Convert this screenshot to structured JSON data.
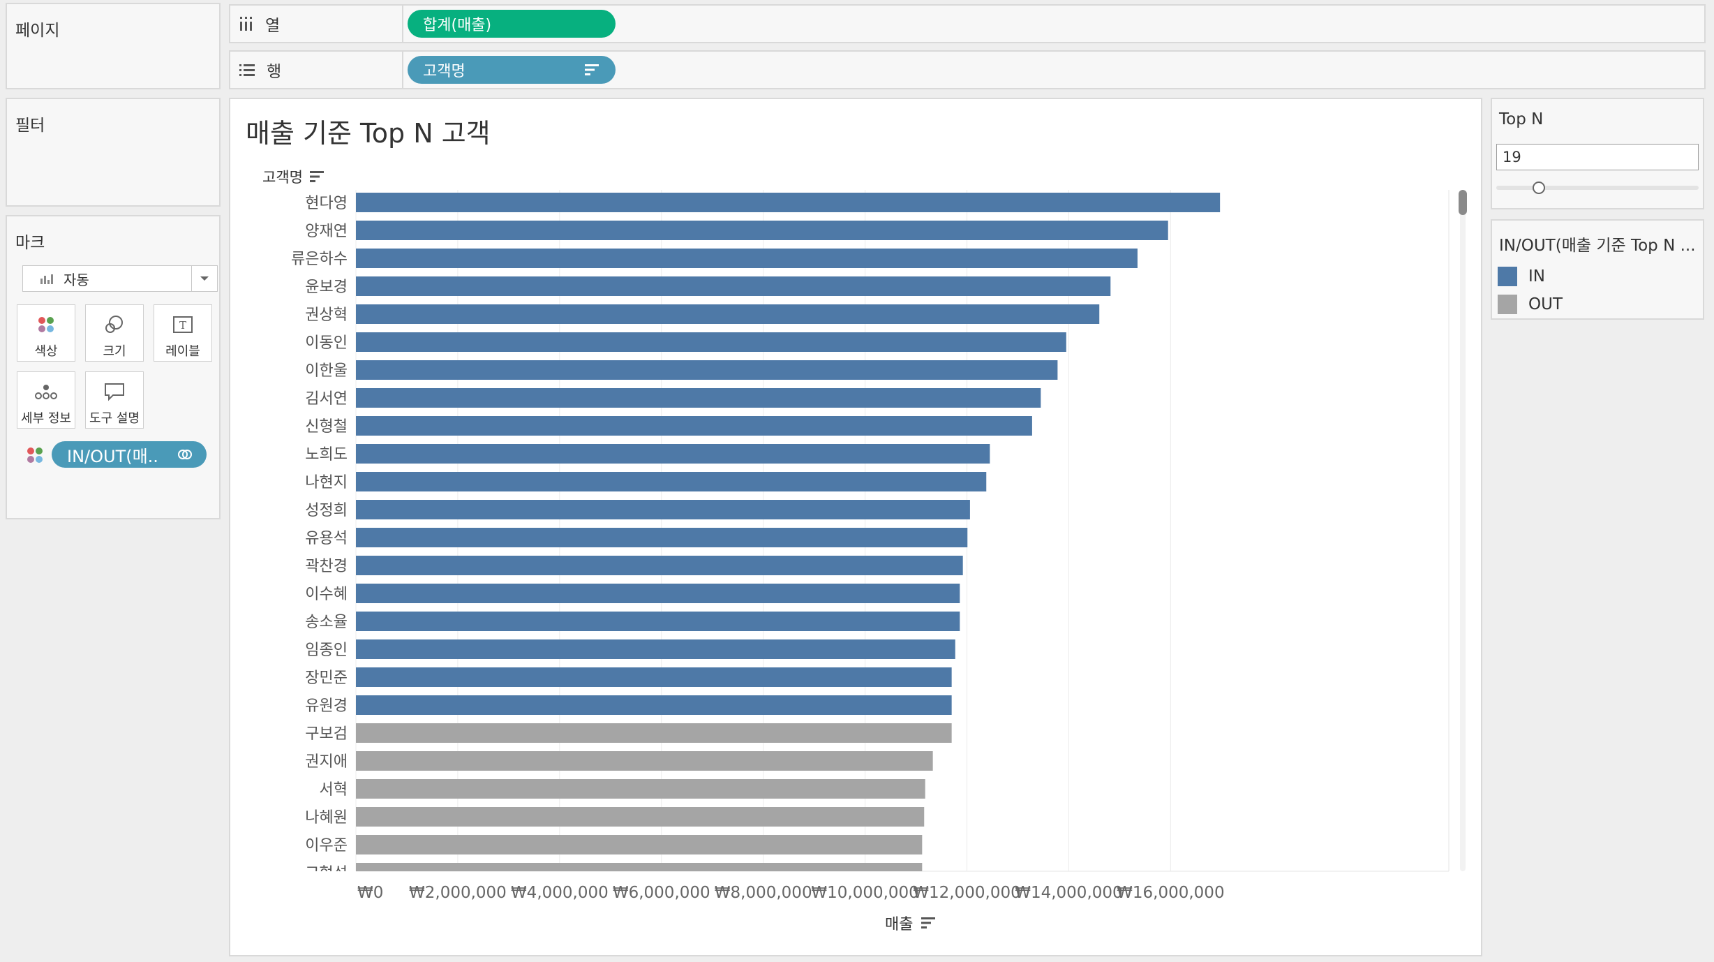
{
  "pages_panel": {
    "title": "페이지"
  },
  "filters_panel": {
    "title": "필터"
  },
  "marks_panel": {
    "title": "마크",
    "mark_type": "자동",
    "buttons": {
      "color": "색상",
      "size": "크기",
      "label": "레이블",
      "detail": "세부 정보",
      "tooltip": "도구 설명"
    },
    "color_pill": "IN/OUT(매.."
  },
  "columns_shelf": {
    "label": "열",
    "pill": "합계(매출)",
    "pill_color": "#07b07f"
  },
  "rows_shelf": {
    "label": "행",
    "pill": "고객명",
    "pill_color": "#4a9ab8"
  },
  "sheet": {
    "title": "매출 기준 Top N 고객",
    "row_header": "고객명",
    "x_axis_title": "매출"
  },
  "topn_panel": {
    "title": "Top N",
    "value": "19"
  },
  "legend_panel": {
    "title": "IN/OUT(매출 기준 Top N ...",
    "items": [
      {
        "label": "IN",
        "color": "#4e79a7"
      },
      {
        "label": "OUT",
        "color": "#a5a5a5"
      }
    ]
  },
  "chart_data": {
    "type": "bar",
    "orientation": "horizontal",
    "categories": [
      "현다영",
      "양재연",
      "류은하수",
      "윤보경",
      "권상혁",
      "이동인",
      "이한울",
      "김서연",
      "신형철",
      "노희도",
      "나현지",
      "성정희",
      "유용석",
      "곽찬경",
      "이수혜",
      "송소율",
      "임종인",
      "장민준",
      "유원경",
      "구보검",
      "권지애",
      "서혁",
      "나혜원",
      "이우준",
      "고혁석"
    ],
    "values": [
      16970000,
      15950000,
      15350000,
      14820000,
      14600000,
      13950000,
      13780000,
      13450000,
      13280000,
      12450000,
      12380000,
      12060000,
      12010000,
      11920000,
      11860000,
      11860000,
      11770000,
      11700000,
      11700000,
      11700000,
      11330000,
      11180000,
      11160000,
      11120000,
      11120000
    ],
    "group": [
      "IN",
      "IN",
      "IN",
      "IN",
      "IN",
      "IN",
      "IN",
      "IN",
      "IN",
      "IN",
      "IN",
      "IN",
      "IN",
      "IN",
      "IN",
      "IN",
      "IN",
      "IN",
      "IN",
      "OUT",
      "OUT",
      "OUT",
      "OUT",
      "OUT",
      "OUT"
    ],
    "xlim": [
      0,
      17900000
    ],
    "x_ticks": [
      0,
      2000000,
      4000000,
      6000000,
      8000000,
      10000000,
      12000000,
      14000000,
      16000000
    ],
    "x_tick_labels": [
      "₩0",
      "₩2,000,000",
      "₩4,000,000",
      "₩6,000,000",
      "₩8,000,000",
      "₩10,000,000",
      "₩12,000,000",
      "₩14,000,000",
      "₩16,000,000"
    ],
    "xlabel": "매출",
    "ylabel": "고객명",
    "grid": true,
    "colors": {
      "IN": "#4e79a7",
      "OUT": "#a5a5a5"
    }
  }
}
